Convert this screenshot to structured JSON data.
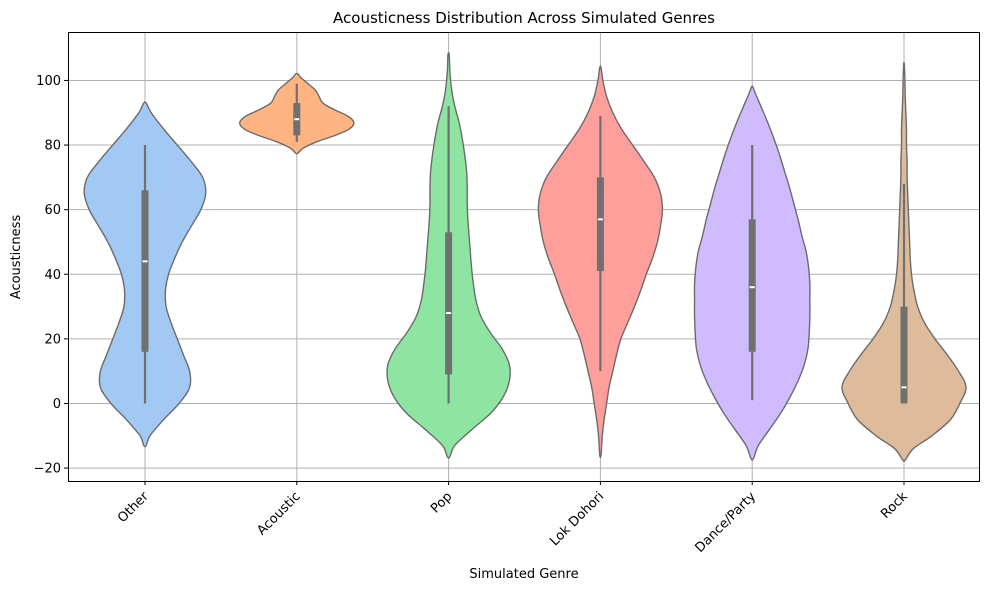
{
  "chart_data": {
    "type": "violin",
    "title": "Acousticness Distribution Across Simulated Genres",
    "xlabel": "Simulated Genre",
    "ylabel": "Acousticness",
    "ylim": [
      -24,
      115
    ],
    "yticks": [
      -20,
      0,
      20,
      40,
      60,
      80,
      100
    ],
    "grid": true,
    "categories": [
      "Other",
      "Acoustic",
      "Pop",
      "Lok Dohori",
      "Dance/Party",
      "Rock"
    ],
    "colors": [
      "#a1c9f4",
      "#ffb482",
      "#8de5a1",
      "#ff9f9b",
      "#d0bbff",
      "#debb9b"
    ],
    "violins": [
      {
        "genre": "Other",
        "box": {
          "min": 0,
          "q1": 16,
          "median": 44,
          "q3": 66,
          "max": 80
        },
        "profile": [
          [
            -13,
            0.02
          ],
          [
            -10,
            0.08
          ],
          [
            -5,
            0.3
          ],
          [
            0,
            0.55
          ],
          [
            5,
            0.72
          ],
          [
            10,
            0.72
          ],
          [
            15,
            0.62
          ],
          [
            20,
            0.52
          ],
          [
            25,
            0.42
          ],
          [
            30,
            0.34
          ],
          [
            35,
            0.33
          ],
          [
            40,
            0.38
          ],
          [
            45,
            0.48
          ],
          [
            50,
            0.6
          ],
          [
            55,
            0.75
          ],
          [
            60,
            0.9
          ],
          [
            65,
            0.98
          ],
          [
            70,
            0.93
          ],
          [
            75,
            0.74
          ],
          [
            80,
            0.52
          ],
          [
            85,
            0.3
          ],
          [
            90,
            0.1
          ],
          [
            93,
            0.02
          ]
        ]
      },
      {
        "genre": "Acoustic",
        "box": {
          "min": 81,
          "q1": 83,
          "median": 88,
          "q3": 93,
          "max": 99
        },
        "profile": [
          [
            77.5,
            0.02
          ],
          [
            79,
            0.1
          ],
          [
            81,
            0.32
          ],
          [
            83,
            0.62
          ],
          [
            85,
            0.85
          ],
          [
            87,
            0.92
          ],
          [
            89,
            0.82
          ],
          [
            91,
            0.6
          ],
          [
            93,
            0.42
          ],
          [
            95,
            0.36
          ],
          [
            97,
            0.3
          ],
          [
            99,
            0.18
          ],
          [
            101,
            0.06
          ],
          [
            102,
            0.02
          ]
        ]
      },
      {
        "genre": "Pop",
        "box": {
          "min": 0,
          "q1": 9,
          "median": 28,
          "q3": 53,
          "max": 92
        },
        "profile": [
          [
            -16.5,
            0.02
          ],
          [
            -13,
            0.1
          ],
          [
            -8,
            0.38
          ],
          [
            -3,
            0.68
          ],
          [
            2,
            0.88
          ],
          [
            7,
            0.98
          ],
          [
            12,
            0.98
          ],
          [
            17,
            0.86
          ],
          [
            22,
            0.67
          ],
          [
            27,
            0.52
          ],
          [
            32,
            0.44
          ],
          [
            37,
            0.4
          ],
          [
            42,
            0.37
          ],
          [
            47,
            0.35
          ],
          [
            52,
            0.33
          ],
          [
            57,
            0.31
          ],
          [
            62,
            0.3
          ],
          [
            67,
            0.3
          ],
          [
            72,
            0.29
          ],
          [
            77,
            0.26
          ],
          [
            82,
            0.22
          ],
          [
            87,
            0.17
          ],
          [
            92,
            0.1
          ],
          [
            97,
            0.05
          ],
          [
            103,
            0.02
          ],
          [
            108,
            0.01
          ]
        ]
      },
      {
        "genre": "Lok Dohori",
        "box": {
          "min": 10,
          "q1": 41,
          "median": 57,
          "q3": 70,
          "max": 89
        },
        "profile": [
          [
            -16,
            0.01
          ],
          [
            -10,
            0.03
          ],
          [
            -5,
            0.06
          ],
          [
            0,
            0.1
          ],
          [
            5,
            0.14
          ],
          [
            10,
            0.2
          ],
          [
            15,
            0.26
          ],
          [
            20,
            0.33
          ],
          [
            25,
            0.44
          ],
          [
            30,
            0.55
          ],
          [
            35,
            0.65
          ],
          [
            40,
            0.74
          ],
          [
            45,
            0.84
          ],
          [
            50,
            0.92
          ],
          [
            55,
            0.97
          ],
          [
            60,
            1.0
          ],
          [
            65,
            0.97
          ],
          [
            70,
            0.87
          ],
          [
            75,
            0.7
          ],
          [
            80,
            0.52
          ],
          [
            85,
            0.34
          ],
          [
            90,
            0.2
          ],
          [
            95,
            0.1
          ],
          [
            100,
            0.04
          ],
          [
            104,
            0.01
          ]
        ]
      },
      {
        "genre": "Dance/Party",
        "box": {
          "min": 1,
          "q1": 16,
          "median": 36,
          "q3": 57,
          "max": 80
        },
        "profile": [
          [
            -17,
            0.02
          ],
          [
            -13,
            0.1
          ],
          [
            -8,
            0.28
          ],
          [
            -3,
            0.46
          ],
          [
            2,
            0.61
          ],
          [
            7,
            0.74
          ],
          [
            12,
            0.84
          ],
          [
            17,
            0.9
          ],
          [
            22,
            0.92
          ],
          [
            27,
            0.93
          ],
          [
            32,
            0.93
          ],
          [
            37,
            0.93
          ],
          [
            42,
            0.91
          ],
          [
            47,
            0.87
          ],
          [
            52,
            0.8
          ],
          [
            57,
            0.74
          ],
          [
            62,
            0.67
          ],
          [
            67,
            0.6
          ],
          [
            72,
            0.52
          ],
          [
            77,
            0.44
          ],
          [
            82,
            0.35
          ],
          [
            87,
            0.25
          ],
          [
            92,
            0.14
          ],
          [
            96,
            0.05
          ],
          [
            98,
            0.01
          ]
        ]
      },
      {
        "genre": "Rock",
        "box": {
          "min": 0,
          "q1": 0,
          "median": 5,
          "q3": 30,
          "max": 68
        },
        "profile": [
          [
            -17.5,
            0.02
          ],
          [
            -14,
            0.15
          ],
          [
            -10,
            0.45
          ],
          [
            -5,
            0.75
          ],
          [
            0,
            0.9
          ],
          [
            5,
            1.0
          ],
          [
            10,
            0.88
          ],
          [
            15,
            0.7
          ],
          [
            20,
            0.5
          ],
          [
            25,
            0.33
          ],
          [
            30,
            0.22
          ],
          [
            35,
            0.16
          ],
          [
            40,
            0.12
          ],
          [
            45,
            0.1
          ],
          [
            50,
            0.09
          ],
          [
            55,
            0.08
          ],
          [
            60,
            0.07
          ],
          [
            65,
            0.06
          ],
          [
            70,
            0.05
          ],
          [
            75,
            0.05
          ],
          [
            80,
            0.04
          ],
          [
            85,
            0.04
          ],
          [
            90,
            0.03
          ],
          [
            95,
            0.02
          ],
          [
            100,
            0.015
          ],
          [
            105,
            0.005
          ]
        ]
      }
    ]
  }
}
